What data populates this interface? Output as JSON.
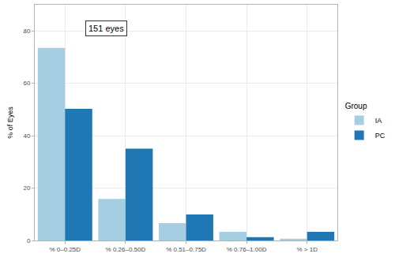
{
  "chart_data": {
    "type": "bar",
    "y_label": "% of Eyes",
    "categories": [
      "% 0–0.25D",
      "% 0.26–0.50D",
      "% 0.51–0.75D",
      "% 0.76–1.00D",
      "% > 1D"
    ],
    "series": [
      {
        "name": "IA",
        "color": "#a6cee3",
        "values": [
          73.5,
          15.9,
          6.6,
          3.3,
          0.7
        ]
      },
      {
        "name": "PC",
        "color": "#1f78b4",
        "values": [
          50.3,
          35.1,
          9.9,
          1.3,
          3.3
        ]
      }
    ],
    "ylim": [
      0,
      90
    ],
    "yticks": [
      0,
      20,
      40,
      60,
      80
    ],
    "grid": true,
    "legend": "right",
    "legend_title": "Group",
    "annotations": [
      "151 eyes"
    ]
  }
}
